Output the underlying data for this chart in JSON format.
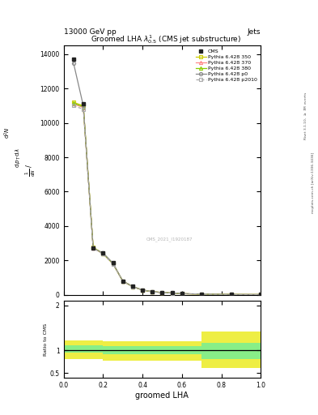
{
  "title": "Groomed LHA $\\lambda^{1}_{0.5}$ (CMS jet substructure)",
  "header_left": "13000 GeV pp",
  "header_right": "Jets",
  "xlabel": "groomed LHA",
  "ylabel_main": "$\\frac{1}{\\mathrm{d}N}$ / $\\mathrm{d}\\,p_T\\,\\mathrm{d}\\,\\lambda$",
  "ylabel_ratio": "Ratio to CMS",
  "right_label1": "Rivet 3.1.10, $\\geq$ 3M events",
  "right_label2": "mcplots.cern.ch [arXiv:1306.3436]",
  "watermark": "CMS_2021_I1920187",
  "cms_x": [
    0.05,
    0.1,
    0.15,
    0.2,
    0.25,
    0.3,
    0.35,
    0.4,
    0.45,
    0.5,
    0.55,
    0.6,
    0.7,
    0.85,
    1.0
  ],
  "cms_y": [
    13700,
    11100,
    2700,
    2450,
    1850,
    800,
    475,
    275,
    175,
    130,
    100,
    60,
    30,
    10,
    5
  ],
  "p350_y": [
    11200,
    11000,
    2750,
    2400,
    1820,
    795,
    470,
    270,
    170,
    125,
    95,
    58,
    28,
    9,
    4
  ],
  "p370_y": [
    11100,
    10900,
    2720,
    2380,
    1800,
    790,
    465,
    268,
    168,
    123,
    93,
    57,
    27,
    9,
    4
  ],
  "p380_y": [
    11150,
    10950,
    2740,
    2390,
    1810,
    792,
    468,
    269,
    169,
    124,
    94,
    57.5,
    27.5,
    9.2,
    4.1
  ],
  "p0_y": [
    13500,
    11000,
    2700,
    2430,
    1840,
    798,
    472,
    272,
    172,
    127,
    97,
    59,
    29,
    9.5,
    4.5
  ],
  "p2010_y": [
    11000,
    10800,
    2700,
    2370,
    1790,
    788,
    462,
    265,
    165,
    121,
    91,
    56,
    26.5,
    8.8,
    3.9
  ],
  "ratio_x_edges": [
    0.0,
    0.1,
    0.2,
    0.3,
    0.4,
    0.5,
    0.6,
    0.7,
    1.0
  ],
  "ratio_green_lo": [
    0.95,
    0.95,
    0.92,
    0.92,
    0.92,
    0.92,
    0.92,
    0.82,
    0.82
  ],
  "ratio_green_hi": [
    1.12,
    1.12,
    1.1,
    1.1,
    1.1,
    1.1,
    1.1,
    1.17,
    1.17
  ],
  "ratio_yellow_lo": [
    0.82,
    0.82,
    0.78,
    0.78,
    0.78,
    0.78,
    0.78,
    0.62,
    0.62
  ],
  "ratio_yellow_hi": [
    1.22,
    1.22,
    1.2,
    1.2,
    1.2,
    1.2,
    1.2,
    1.42,
    1.42
  ],
  "color_350": "#cccc00",
  "color_370": "#ff8888",
  "color_380": "#88cc00",
  "color_p0": "#888888",
  "color_p2010": "#aaaaaa",
  "color_cms": "#222222",
  "ylim_main": [
    0,
    14500
  ],
  "ylim_ratio": [
    0.4,
    2.1
  ],
  "xlim": [
    0.0,
    1.0
  ],
  "yticks_main": [
    0,
    2000,
    4000,
    6000,
    8000,
    10000,
    12000,
    14000
  ],
  "ytick_labels_main": [
    "0",
    "2000",
    "4000",
    "6000",
    "8000",
    "10000",
    "12000",
    "14000"
  ]
}
